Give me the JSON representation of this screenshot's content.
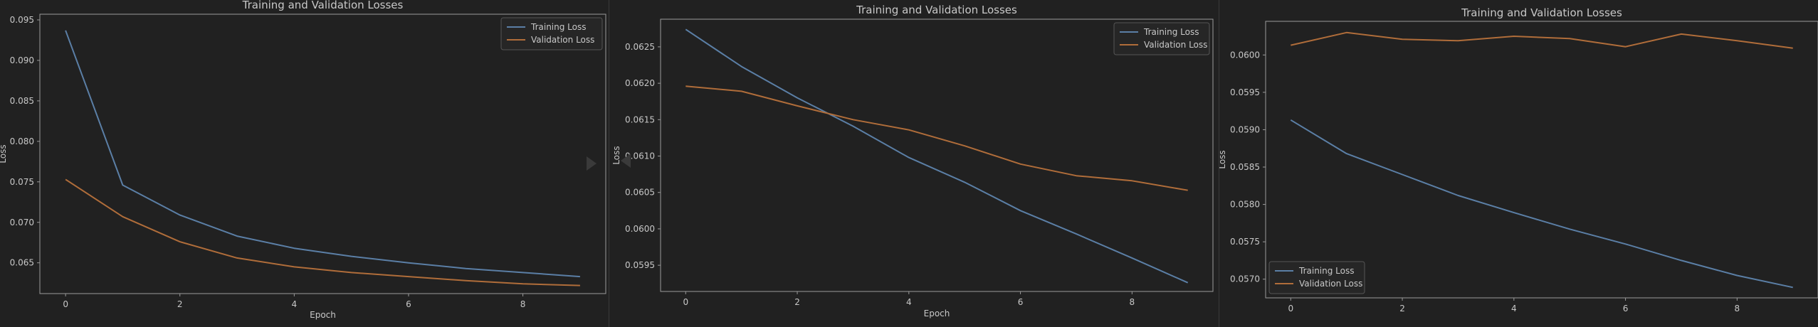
{
  "colors": {
    "background": "#212121",
    "axes": "#9a9a9a",
    "text": "#c8c8c8",
    "training": "#5b7fa6",
    "validation": "#b06d3a",
    "legend_bg": "#262626"
  },
  "nav": {
    "next_icon": "triangle-right-icon",
    "prev_icon": "triangle-left-icon"
  },
  "chart_data": [
    {
      "type": "line",
      "title": "Training and Validation Losses",
      "xlabel": "Epoch",
      "ylabel": "Loss",
      "x": [
        0,
        1,
        2,
        3,
        4,
        5,
        6,
        7,
        8,
        9
      ],
      "xticks": [
        "0",
        "2",
        "4",
        "6",
        "8"
      ],
      "yticks": [
        "0.065",
        "0.070",
        "0.075",
        "0.080",
        "0.085",
        "0.090",
        "0.095"
      ],
      "ylim": [
        0.0612,
        0.0957
      ],
      "xlim": [
        -0.45,
        9.45
      ],
      "legend": "top-right",
      "series": [
        {
          "name": "Training Loss",
          "values": [
            0.0937,
            0.0746,
            0.0709,
            0.0683,
            0.0668,
            0.0658,
            0.065,
            0.0643,
            0.0638,
            0.0633
          ]
        },
        {
          "name": "Validation Loss",
          "values": [
            0.0753,
            0.0707,
            0.0676,
            0.0656,
            0.0645,
            0.0638,
            0.0633,
            0.0628,
            0.0624,
            0.0622
          ]
        }
      ]
    },
    {
      "type": "line",
      "title": "Training and Validation Losses",
      "xlabel": "Epoch",
      "ylabel": "Loss",
      "x": [
        0,
        1,
        2,
        3,
        4,
        5,
        6,
        7,
        8,
        9
      ],
      "xticks": [
        "0",
        "2",
        "4",
        "6",
        "8"
      ],
      "yticks": [
        "0.0595",
        "0.0600",
        "0.0605",
        "0.0610",
        "0.0615",
        "0.0620",
        "0.0625"
      ],
      "ylim": [
        0.05914,
        0.06288
      ],
      "xlim": [
        -0.45,
        9.45
      ],
      "legend": "top-right",
      "series": [
        {
          "name": "Training Loss",
          "values": [
            0.06274,
            0.06223,
            0.0618,
            0.06141,
            0.06098,
            0.06064,
            0.06025,
            0.05993,
            0.0596,
            0.05926
          ]
        },
        {
          "name": "Validation Loss",
          "values": [
            0.06196,
            0.06189,
            0.06169,
            0.0615,
            0.06136,
            0.06114,
            0.06089,
            0.06073,
            0.06066,
            0.06053
          ]
        }
      ]
    },
    {
      "type": "line",
      "title": "Training and Validation Losses",
      "xlabel": "",
      "ylabel": "Loss",
      "x": [
        0,
        1,
        2,
        3,
        4,
        5,
        6,
        7,
        8,
        9
      ],
      "xticks": [
        "0",
        "2",
        "4",
        "6",
        "8"
      ],
      "yticks": [
        "0.0570",
        "0.0575",
        "0.0580",
        "0.0585",
        "0.0590",
        "0.0595",
        "0.0600"
      ],
      "ylim": [
        0.05675,
        0.06045
      ],
      "xlim": [
        -0.45,
        9.45
      ],
      "legend": "bottom-left",
      "series": [
        {
          "name": "Training Loss",
          "values": [
            0.05913,
            0.05868,
            0.0584,
            0.05812,
            0.05789,
            0.05767,
            0.05747,
            0.05725,
            0.05705,
            0.05689
          ]
        },
        {
          "name": "Validation Loss",
          "values": [
            0.06013,
            0.0603,
            0.06021,
            0.06019,
            0.06025,
            0.06022,
            0.06011,
            0.06028,
            0.06019,
            0.06009
          ]
        }
      ]
    }
  ]
}
